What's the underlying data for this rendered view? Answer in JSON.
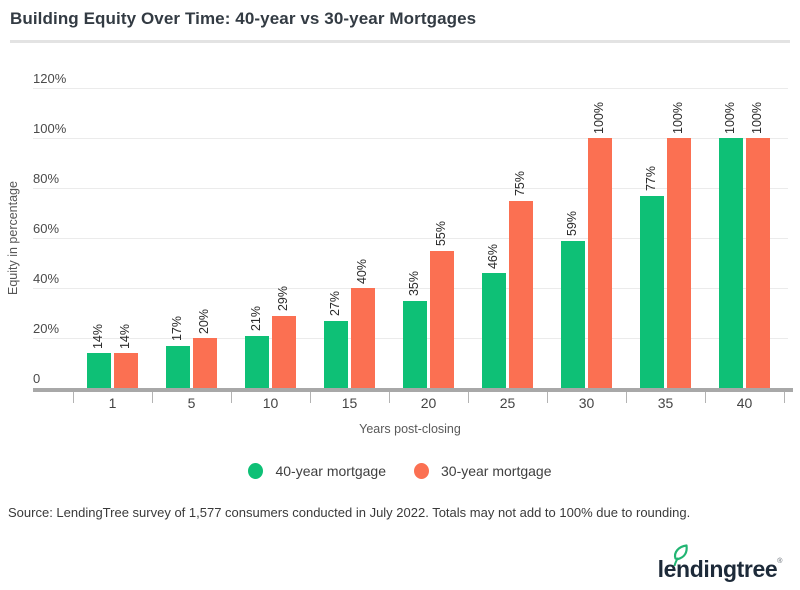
{
  "header": {
    "title": "Building Equity Over Time: 40-year vs 30-year Mortgages"
  },
  "chart_data": {
    "type": "bar",
    "title": "Building Equity Over Time: 40-year vs 30-year Mortgages",
    "categories": [
      "1",
      "5",
      "10",
      "15",
      "20",
      "25",
      "30",
      "35",
      "40"
    ],
    "series": [
      {
        "name": "40-year mortgage",
        "color": "#0ec076",
        "values": [
          14,
          17,
          21,
          27,
          35,
          46,
          59,
          77,
          100
        ]
      },
      {
        "name": "30-year mortgage",
        "color": "#fb7052",
        "values": [
          14,
          20,
          29,
          40,
          55,
          75,
          100,
          100,
          100
        ]
      }
    ],
    "value_suffix": "%",
    "xlabel": "Years post-closing",
    "ylabel": "Equity in percentage",
    "ylim": [
      0,
      120
    ],
    "ytick_step": 20,
    "ytick_labels": [
      "0",
      "20%",
      "40%",
      "60%",
      "80%",
      "100%",
      "120%"
    ],
    "grid": true,
    "legend_position": "bottom"
  },
  "footer": {
    "source": "Source: LendingTree survey of 1,577 consumers conducted in July 2022. Totals may not add to 100%  due to rounding.",
    "logo_text": "lendingtree",
    "logo_mark": "®",
    "logo_colors": {
      "text": "#1d2a39",
      "leaf": "#22b573"
    }
  }
}
